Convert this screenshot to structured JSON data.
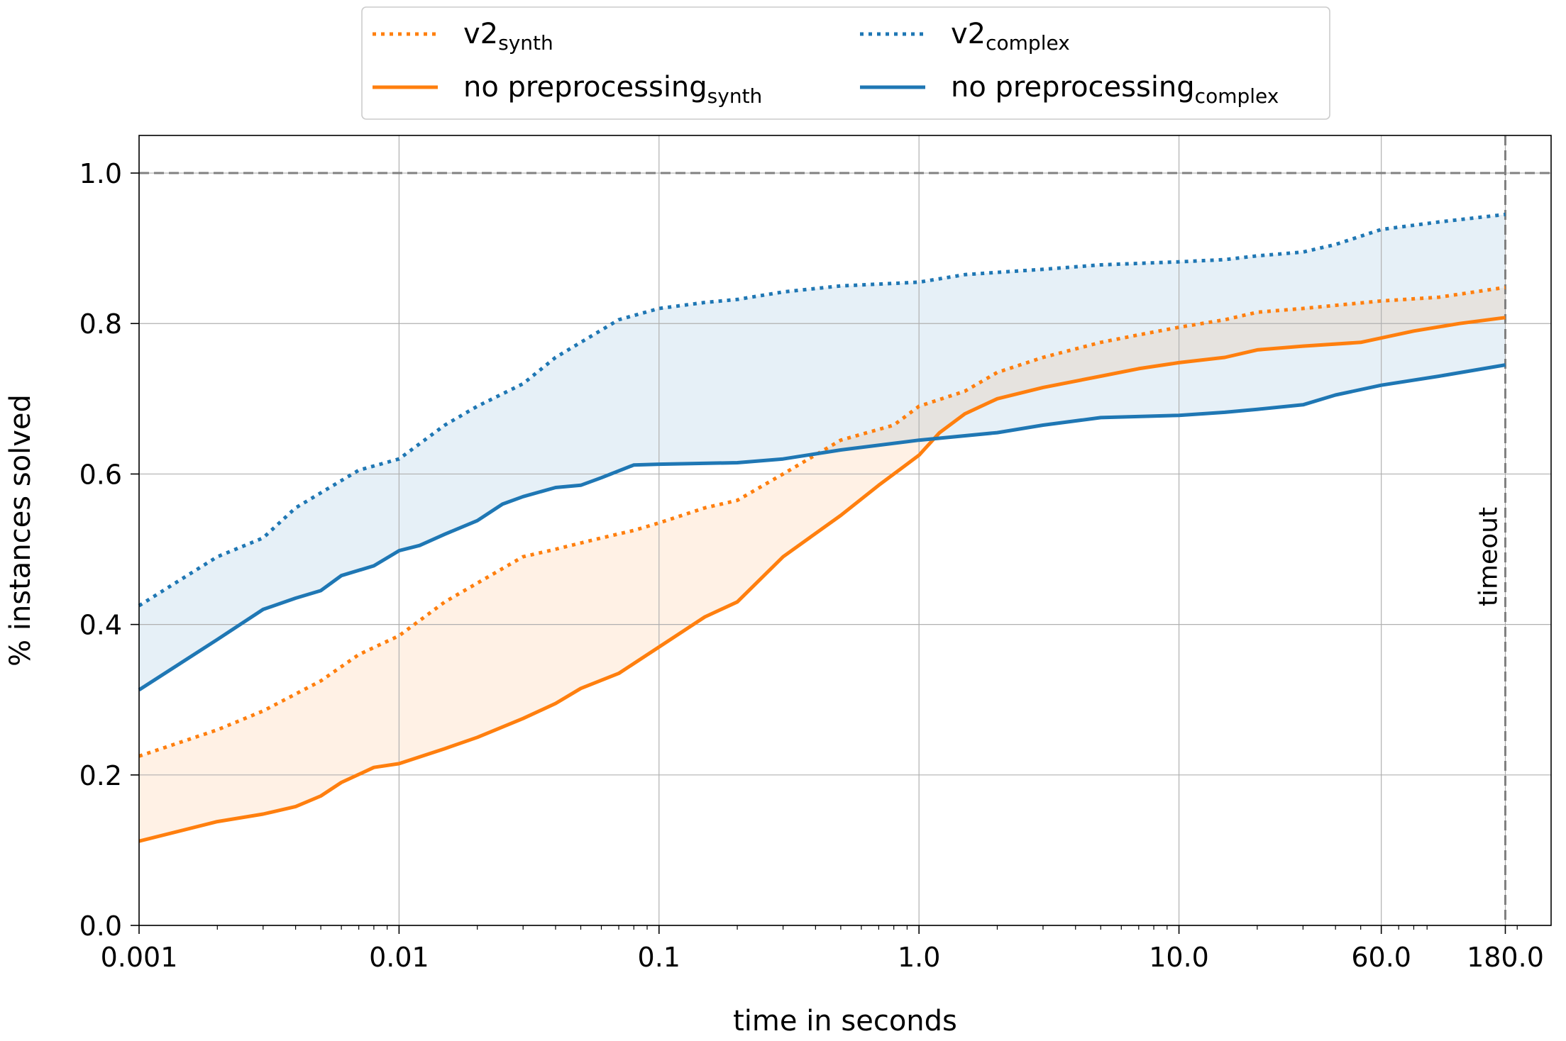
{
  "chart_data": {
    "type": "line",
    "xlabel": "time in seconds",
    "ylabel": "% instances solved",
    "x_scale": "log",
    "xlim": [
      0.001,
      270
    ],
    "ylim": [
      0.0,
      1.05
    ],
    "x_ticks": [
      0.001,
      0.01,
      0.1,
      1.0,
      10.0,
      60.0,
      180.0
    ],
    "x_tick_labels": [
      "0.001",
      "0.01",
      "0.1",
      "1.0",
      "10.0",
      "60.0",
      "180.0"
    ],
    "y_ticks": [
      0.0,
      0.2,
      0.4,
      0.6,
      0.8,
      1.0
    ],
    "y_tick_labels": [
      "0.0",
      "0.2",
      "0.4",
      "0.6",
      "0.8",
      "1.0"
    ],
    "grid": true,
    "legend_position": "top-center, above plot",
    "reference_lines": [
      {
        "orientation": "horizontal",
        "value": 1.0,
        "style": "dashed",
        "color": "#808080"
      },
      {
        "orientation": "vertical",
        "value": 180.0,
        "style": "dashed",
        "color": "#808080",
        "label": "timeout"
      }
    ],
    "series": [
      {
        "name": "v2",
        "name_sub": "synth",
        "color": "#ff7f0e",
        "style": "dotted",
        "x": [
          0.001,
          0.002,
          0.003,
          0.005,
          0.007,
          0.01,
          0.015,
          0.02,
          0.03,
          0.04,
          0.06,
          0.08,
          0.1,
          0.15,
          0.2,
          0.3,
          0.5,
          0.8,
          1.0,
          1.5,
          2.0,
          3.0,
          5.0,
          7.0,
          10.0,
          15.0,
          20.0,
          30.0,
          60.0,
          100.0,
          180.0
        ],
        "y": [
          0.225,
          0.26,
          0.285,
          0.325,
          0.36,
          0.385,
          0.43,
          0.455,
          0.49,
          0.5,
          0.515,
          0.525,
          0.535,
          0.555,
          0.565,
          0.6,
          0.645,
          0.665,
          0.69,
          0.71,
          0.735,
          0.755,
          0.775,
          0.785,
          0.795,
          0.805,
          0.815,
          0.82,
          0.83,
          0.835,
          0.848
        ]
      },
      {
        "name": "v2",
        "name_sub": "complex",
        "color": "#1f77b4",
        "style": "dotted",
        "x": [
          0.001,
          0.002,
          0.003,
          0.004,
          0.005,
          0.007,
          0.01,
          0.015,
          0.02,
          0.03,
          0.04,
          0.05,
          0.07,
          0.1,
          0.15,
          0.2,
          0.3,
          0.5,
          1.0,
          1.5,
          2.0,
          3.0,
          5.0,
          10.0,
          15.0,
          20.0,
          30.0,
          40.0,
          60.0,
          100.0,
          180.0
        ],
        "y": [
          0.425,
          0.49,
          0.515,
          0.555,
          0.575,
          0.605,
          0.62,
          0.665,
          0.69,
          0.72,
          0.755,
          0.775,
          0.805,
          0.82,
          0.828,
          0.832,
          0.842,
          0.85,
          0.855,
          0.865,
          0.868,
          0.872,
          0.878,
          0.882,
          0.885,
          0.89,
          0.895,
          0.905,
          0.925,
          0.935,
          0.945
        ]
      },
      {
        "name": "no preprocessing",
        "name_sub": "synth",
        "color": "#ff7f0e",
        "style": "solid",
        "x": [
          0.001,
          0.002,
          0.003,
          0.004,
          0.005,
          0.006,
          0.008,
          0.01,
          0.015,
          0.02,
          0.03,
          0.04,
          0.05,
          0.07,
          0.1,
          0.15,
          0.2,
          0.3,
          0.5,
          0.7,
          1.0,
          1.2,
          1.5,
          2.0,
          3.0,
          5.0,
          7.0,
          10.0,
          15.0,
          20.0,
          30.0,
          50.0,
          80.0,
          120.0,
          180.0
        ],
        "y": [
          0.112,
          0.138,
          0.148,
          0.158,
          0.172,
          0.19,
          0.21,
          0.215,
          0.235,
          0.25,
          0.275,
          0.295,
          0.315,
          0.335,
          0.37,
          0.41,
          0.43,
          0.49,
          0.545,
          0.585,
          0.625,
          0.655,
          0.68,
          0.7,
          0.715,
          0.73,
          0.74,
          0.748,
          0.755,
          0.765,
          0.77,
          0.775,
          0.79,
          0.8,
          0.808
        ]
      },
      {
        "name": "no preprocessing",
        "name_sub": "complex",
        "color": "#1f77b4",
        "style": "solid",
        "x": [
          0.001,
          0.002,
          0.003,
          0.004,
          0.005,
          0.006,
          0.008,
          0.01,
          0.012,
          0.015,
          0.02,
          0.025,
          0.03,
          0.04,
          0.05,
          0.06,
          0.08,
          0.1,
          0.2,
          0.3,
          0.5,
          1.0,
          2.0,
          3.0,
          5.0,
          10.0,
          15.0,
          20.0,
          30.0,
          40.0,
          60.0,
          100.0,
          180.0
        ],
        "y": [
          0.313,
          0.38,
          0.42,
          0.435,
          0.445,
          0.465,
          0.478,
          0.498,
          0.505,
          0.52,
          0.538,
          0.56,
          0.57,
          0.582,
          0.585,
          0.595,
          0.612,
          0.613,
          0.615,
          0.62,
          0.632,
          0.645,
          0.655,
          0.665,
          0.675,
          0.678,
          0.682,
          0.686,
          0.692,
          0.705,
          0.718,
          0.73,
          0.745
        ]
      }
    ]
  }
}
